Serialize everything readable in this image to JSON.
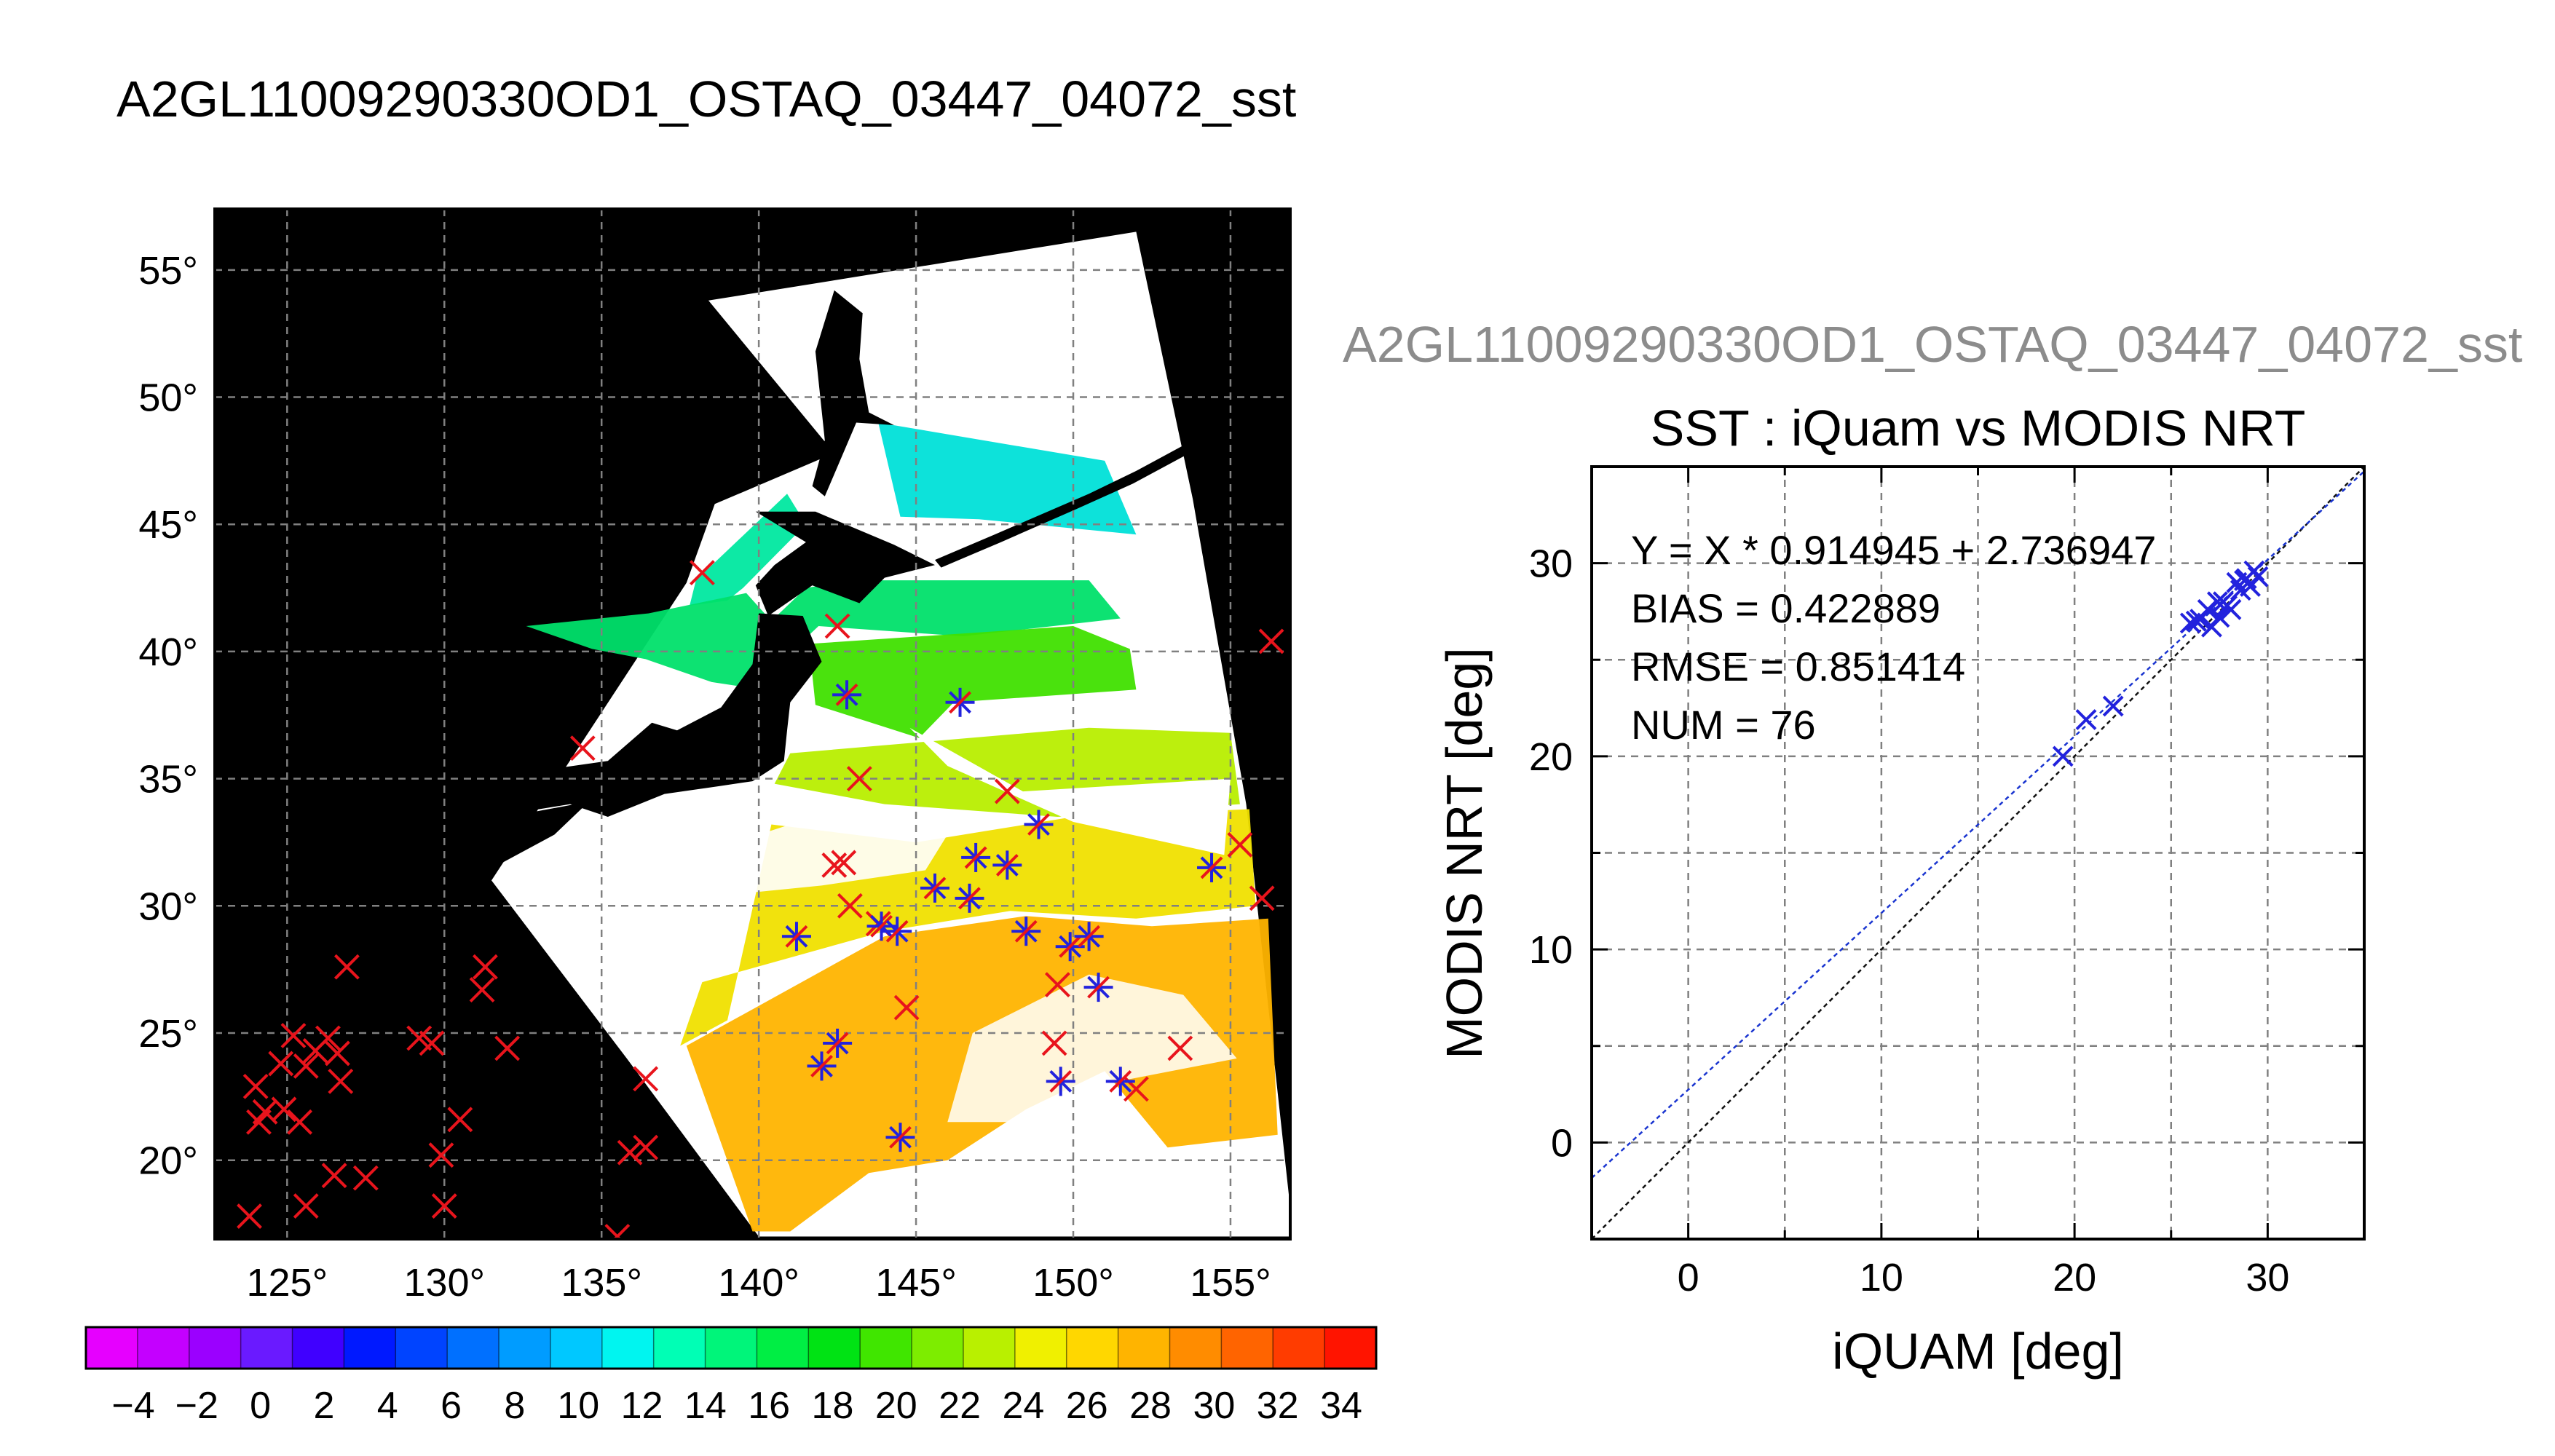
{
  "page_title": "A2GL11009290330OD1_OSTAQ_03447_04072_sst",
  "scatter_header": "A2GL11009290330OD1_OSTAQ_03447_04072_sst",
  "colors": {
    "land": "#000000",
    "swath_fill": "#ffffff",
    "red_marker": "#e8141c",
    "blue_marker": "#2222dd",
    "fit_line": "#1a35d0",
    "identity_line": "#111111",
    "grid": "#808080"
  },
  "chart_data": [
    {
      "type": "map",
      "lon_ticks": [
        "125°",
        "130°",
        "135°",
        "140°",
        "145°",
        "150°",
        "155°"
      ],
      "lat_ticks": [
        "20°",
        "25°",
        "30°",
        "35°",
        "40°",
        "45°",
        "50°",
        "55°"
      ],
      "lon_values": [
        125,
        130,
        135,
        140,
        145,
        150,
        155
      ],
      "lat_values": [
        20,
        25,
        30,
        35,
        40,
        45,
        50,
        55
      ],
      "xlim": [
        122.7,
        156.9
      ],
      "ylim": [
        16.9,
        57.4
      ],
      "red_x_markers": [
        [
          138.2,
          43.1
        ],
        [
          142.5,
          41.0
        ],
        [
          134.4,
          36.2
        ],
        [
          143.2,
          35.0
        ],
        [
          147.9,
          34.5
        ],
        [
          142.7,
          31.7
        ],
        [
          142.4,
          31.6
        ],
        [
          142.9,
          30.0
        ],
        [
          143.8,
          29.3
        ],
        [
          144.7,
          26.0
        ],
        [
          149.5,
          26.9
        ],
        [
          149.4,
          24.6
        ],
        [
          152.0,
          22.8
        ],
        [
          153.4,
          24.4
        ],
        [
          155.3,
          32.4
        ],
        [
          156.0,
          30.3
        ],
        [
          156.3,
          40.4
        ],
        [
          126.9,
          27.6
        ],
        [
          131.3,
          27.6
        ],
        [
          131.2,
          26.7
        ],
        [
          132.0,
          24.4
        ],
        [
          129.2,
          24.8
        ],
        [
          129.6,
          24.6
        ],
        [
          130.5,
          21.6
        ],
        [
          129.9,
          20.2
        ],
        [
          130.0,
          18.2
        ],
        [
          126.7,
          23.1
        ],
        [
          127.5,
          19.3
        ],
        [
          126.5,
          19.4
        ],
        [
          125.6,
          18.2
        ],
        [
          123.8,
          17.8
        ],
        [
          124.0,
          22.9
        ],
        [
          124.1,
          21.5
        ],
        [
          124.3,
          21.9
        ],
        [
          124.8,
          23.8
        ],
        [
          125.2,
          24.9
        ],
        [
          125.6,
          23.7
        ],
        [
          125.9,
          24.3
        ],
        [
          126.3,
          24.8
        ],
        [
          126.6,
          24.2
        ],
        [
          125.4,
          21.5
        ],
        [
          124.9,
          22.0
        ],
        [
          136.4,
          23.2
        ],
        [
          135.9,
          20.3
        ],
        [
          136.4,
          20.5
        ],
        [
          135.5,
          17.0
        ]
      ],
      "blue_star_markers": [
        [
          142.8,
          38.3
        ],
        [
          146.4,
          38.0
        ],
        [
          141.2,
          28.8
        ],
        [
          143.9,
          29.2
        ],
        [
          144.4,
          29.0
        ],
        [
          145.6,
          30.7
        ],
        [
          146.7,
          30.3
        ],
        [
          146.9,
          31.9
        ],
        [
          147.9,
          31.6
        ],
        [
          148.9,
          33.2
        ],
        [
          148.5,
          29.0
        ],
        [
          149.9,
          28.4
        ],
        [
          150.5,
          28.8
        ],
        [
          150.8,
          26.8
        ],
        [
          154.4,
          31.5
        ],
        [
          142.0,
          23.7
        ],
        [
          142.5,
          24.6
        ],
        [
          144.5,
          20.9
        ],
        [
          149.6,
          23.1
        ],
        [
          151.5,
          23.1
        ]
      ],
      "colorbar": {
        "tick_labels": [
          "−4",
          "−2",
          "0",
          "2",
          "4",
          "6",
          "8",
          "10",
          "12",
          "14",
          "16",
          "18",
          "20",
          "22",
          "24",
          "26",
          "28",
          "30",
          "32",
          "34"
        ],
        "colors": [
          "#e600ff",
          "#c400ff",
          "#9b00ff",
          "#6a1aff",
          "#4000ff",
          "#0019ff",
          "#0044ff",
          "#0070ff",
          "#009cff",
          "#00c8ff",
          "#00f5f0",
          "#00ffb5",
          "#00f57a",
          "#00ee44",
          "#00e314",
          "#40e600",
          "#7ded00",
          "#b9f000",
          "#f0f000",
          "#ffd700",
          "#ffb400",
          "#ff8c00",
          "#ff6400",
          "#ff3c00",
          "#ff1400"
        ]
      }
    },
    {
      "type": "scatter",
      "title": "SST : iQuam vs MODIS NRT",
      "xlabel": "iQUAM [deg]",
      "ylabel": "MODIS NRT [deg]",
      "xlim": [
        -5,
        35
      ],
      "ylim": [
        -5,
        35
      ],
      "x_ticks": [
        "0",
        "10",
        "20",
        "30"
      ],
      "y_ticks": [
        "0",
        "10",
        "20",
        "30"
      ],
      "tick_values": [
        0,
        10,
        20,
        30
      ],
      "grid": true,
      "stats": [
        "Y = X * 0.914945 + 2.736947",
        "BIAS = 0.422889",
        "RMSE = 0.851414",
        "NUM = 76"
      ],
      "fit": {
        "slope": 0.914945,
        "intercept": 2.736947
      },
      "points": [
        [
          19.4,
          20.0
        ],
        [
          20.6,
          21.9
        ],
        [
          22.0,
          22.6
        ],
        [
          26.0,
          26.9
        ],
        [
          26.5,
          27.1
        ],
        [
          26.9,
          27.6
        ],
        [
          27.1,
          26.7
        ],
        [
          27.4,
          28.0
        ],
        [
          27.5,
          27.2
        ],
        [
          27.7,
          28.0
        ],
        [
          28.1,
          27.6
        ],
        [
          28.4,
          29.0
        ],
        [
          28.6,
          28.6
        ],
        [
          28.9,
          29.2
        ],
        [
          29.1,
          28.8
        ],
        [
          29.3,
          29.6
        ],
        [
          29.5,
          29.3
        ],
        [
          26.3,
          27.0
        ],
        [
          27.9,
          27.8
        ],
        [
          28.8,
          29.1
        ]
      ]
    }
  ]
}
